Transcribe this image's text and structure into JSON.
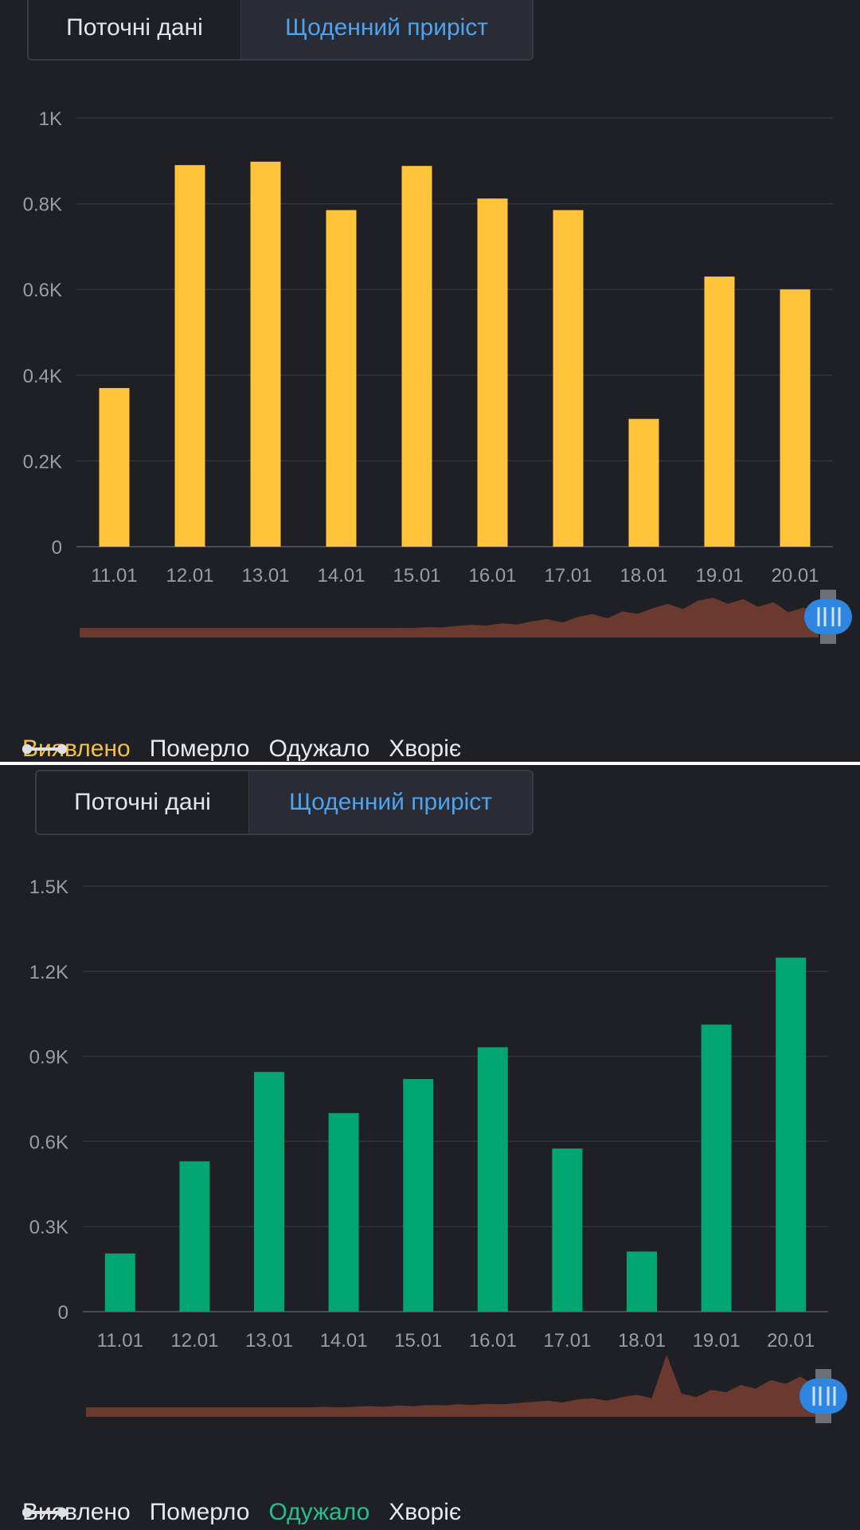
{
  "tabs": {
    "current_label": "Поточні дані",
    "daily_label": "Щоденний приріст"
  },
  "legend": [
    {
      "label": "Виявлено"
    },
    {
      "label": "Померло"
    },
    {
      "label": "Одужало"
    },
    {
      "label": "Хворіє"
    }
  ],
  "colors": {
    "background": "#1f2026",
    "detected": "#ffc43a",
    "recovered": "#00a56f",
    "inactive_series": "#e0e0e0",
    "overview": "#6a3a2e",
    "slider_handle": "#2f86e0",
    "tab_active_text": "#4da3f0"
  },
  "chart_data": [
    {
      "type": "bar",
      "series_name": "Виявлено",
      "categories": [
        "11.01",
        "12.01",
        "13.01",
        "14.01",
        "15.01",
        "16.01",
        "17.01",
        "18.01",
        "19.01",
        "20.01"
      ],
      "values": [
        370,
        890,
        898,
        785,
        888,
        812,
        785,
        298,
        630,
        600
      ],
      "ylim": [
        0,
        1000
      ],
      "yticks": [
        0,
        200,
        400,
        600,
        800,
        1000
      ],
      "ytick_labels": [
        "0",
        "0.2K",
        "0.4K",
        "0.6K",
        "0.8K",
        "1K"
      ],
      "grid": true,
      "overview": [
        10,
        10,
        10,
        11,
        11,
        11,
        12,
        12,
        12,
        13,
        13,
        14,
        14,
        14,
        15,
        16,
        17,
        16,
        18,
        17,
        19,
        21,
        20,
        23,
        22,
        26,
        29,
        27,
        33,
        30,
        38,
        44,
        35,
        49,
        57,
        46,
        64,
        58,
        72,
        84,
        70,
        92,
        100,
        84,
        96,
        76,
        88,
        62,
        74,
        66
      ]
    },
    {
      "type": "bar",
      "series_name": "Одужало",
      "categories": [
        "11.01",
        "12.01",
        "13.01",
        "14.01",
        "15.01",
        "16.01",
        "17.01",
        "18.01",
        "19.01",
        "20.01"
      ],
      "values": [
        205,
        530,
        845,
        700,
        820,
        932,
        575,
        212,
        1012,
        1248
      ],
      "ylim": [
        0,
        1500
      ],
      "yticks": [
        0,
        300,
        600,
        900,
        1200,
        1500
      ],
      "ytick_labels": [
        "0",
        "0.3K",
        "0.6K",
        "0.9K",
        "1.2K",
        "1.5K"
      ],
      "grid": true,
      "overview": [
        8,
        8,
        9,
        9,
        9,
        10,
        10,
        10,
        11,
        11,
        11,
        12,
        12,
        12,
        13,
        13,
        14,
        13,
        14,
        15,
        14,
        16,
        15,
        17,
        16,
        18,
        17,
        19,
        18,
        20,
        22,
        24,
        21,
        26,
        28,
        24,
        30,
        34,
        28,
        100,
        36,
        30,
        42,
        38,
        50,
        44,
        58,
        52,
        64,
        48
      ]
    }
  ]
}
